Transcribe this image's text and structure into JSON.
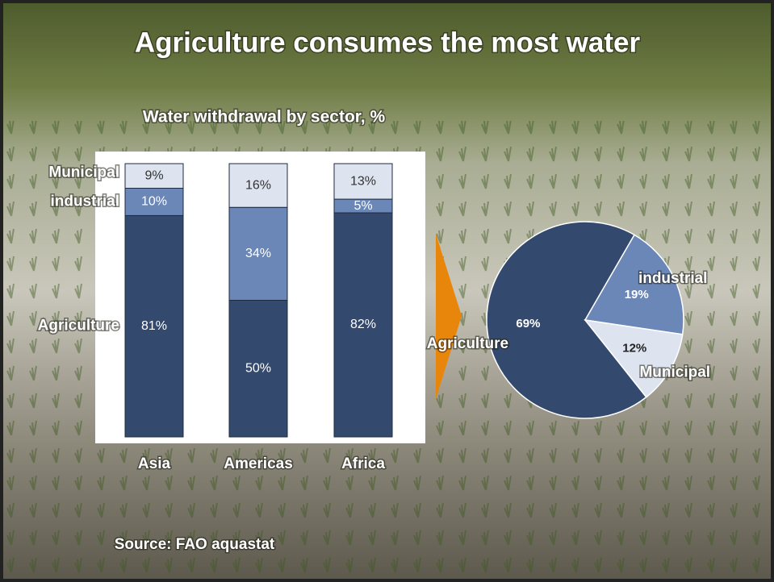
{
  "title": "Agriculture consumes the most water",
  "source": "Source: FAO aquastat",
  "chart_data": [
    {
      "type": "stacked_bar",
      "title": "Water withdrawal by sector, %",
      "categories": [
        "Asia",
        "Americas",
        "Africa"
      ],
      "ylim": [
        0,
        100
      ],
      "series": [
        {
          "name": "Agriculture",
          "color": "#34496e",
          "values": [
            81,
            50,
            82
          ],
          "value_labels": [
            "81%",
            "50%",
            "82%"
          ]
        },
        {
          "name": "industrial",
          "color": "#6a87b8",
          "values": [
            10,
            34,
            5
          ],
          "value_labels": [
            "10%",
            "34%",
            "5%"
          ]
        },
        {
          "name": "Municipal",
          "color": "#dde3ef",
          "values": [
            9,
            16,
            13
          ],
          "value_labels": [
            "9%",
            "16%",
            "13%"
          ]
        }
      ]
    },
    {
      "type": "pie",
      "categories": [
        "Agriculture",
        "industrial",
        "Municipal"
      ],
      "values": [
        69,
        19,
        12
      ],
      "value_labels": [
        "69%",
        "19%",
        "12%"
      ],
      "colors": [
        "#34496e",
        "#6a87b8",
        "#dde3ef"
      ]
    }
  ]
}
